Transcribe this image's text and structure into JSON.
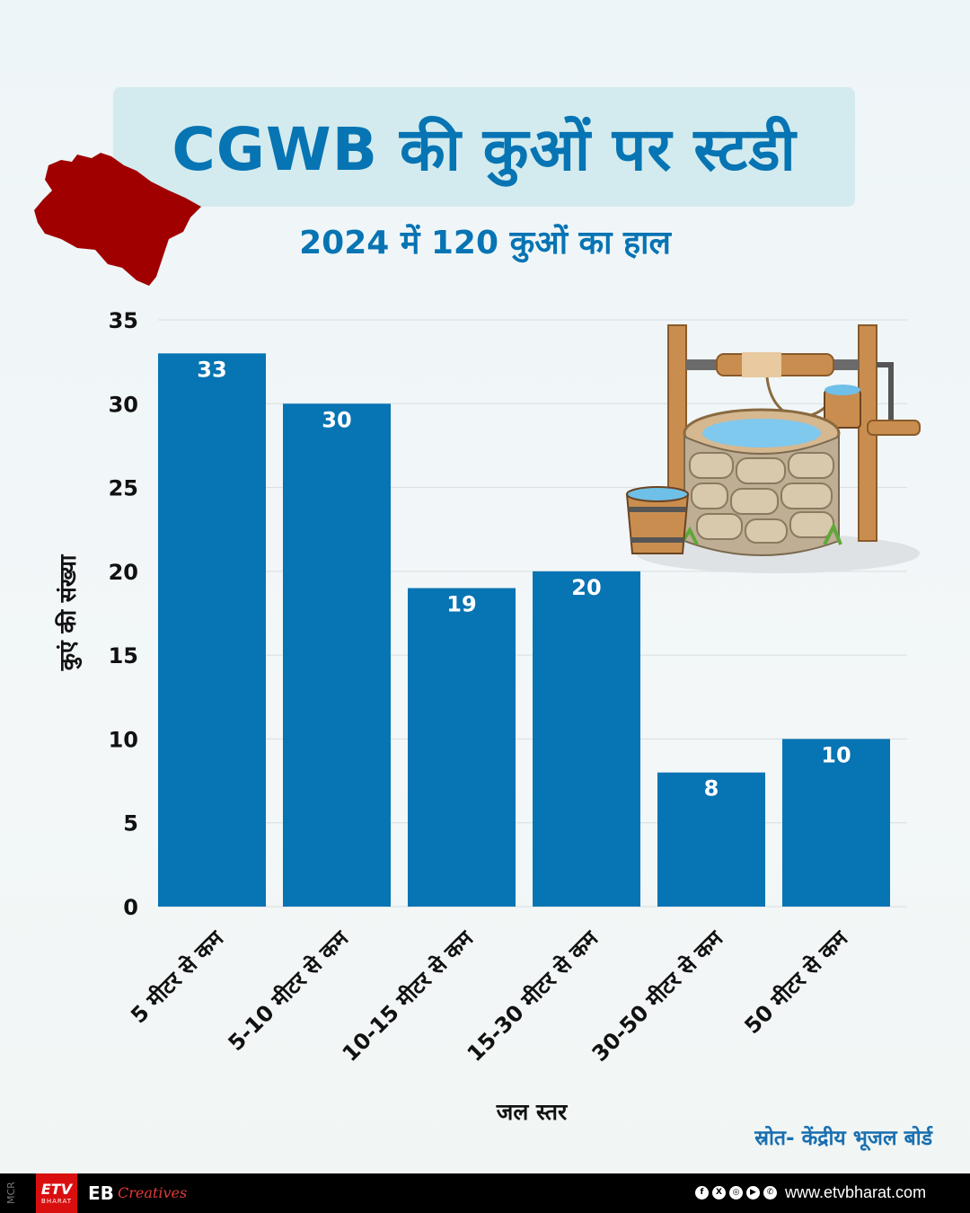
{
  "title": "CGWB की कुओं पर स्टडी",
  "subtitle": "2024 में 120 कुओं का हाल",
  "source": "स्रोत- केंद्रीय भूजल बोर्ड",
  "footer": {
    "mcr": "MCR",
    "logo_text": "ETV",
    "logo_sub": "BHARAT",
    "brand": "EB",
    "brand_script": "Creatives",
    "social_icons": [
      "facebook-icon",
      "x-icon",
      "instagram-icon",
      "youtube-icon",
      "whatsapp-icon"
    ],
    "website": "www.etvbharat.com"
  },
  "colors": {
    "bar": "#0774b3",
    "title": "#0774b3",
    "map": "#a00000"
  },
  "chart_data": {
    "type": "bar",
    "categories": [
      "5 मीटर से कम",
      "5-10 मीटर से कम",
      "10-15 मीटर से कम",
      "15-30 मीटर से कम",
      "30-50 मीटर से कम",
      "50 मीटर से कम"
    ],
    "values": [
      33,
      30,
      19,
      20,
      8,
      10
    ],
    "xlabel": "जल स्तर",
    "ylabel": "कुएं की संख्या",
    "ylim": [
      0,
      35
    ],
    "yticks": [
      0,
      5,
      10,
      15,
      20,
      25,
      30,
      35
    ],
    "grid": true,
    "data_labels": true
  }
}
